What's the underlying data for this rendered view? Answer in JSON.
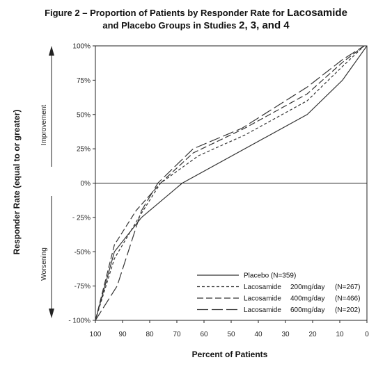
{
  "title": {
    "line1_a": "Figure 2 – Proportion of Patients by Responder Rate for ",
    "line1_b": "Lacosamide",
    "line2_a": "and Placebo Groups in Studies ",
    "line2_b": "2, 3, and 4"
  },
  "chart_data": {
    "type": "line",
    "xlabel": "Percent of Patients",
    "ylabel": "Responder Rate (equal to or greater)",
    "xlim": [
      100,
      0
    ],
    "ylim": [
      -100,
      100
    ],
    "x_reversed": true,
    "x_ticks": [
      100,
      90,
      80,
      70,
      60,
      50,
      40,
      30,
      20,
      10,
      0
    ],
    "x_tick_labels": [
      "100",
      "90",
      "80",
      "70",
      "60",
      "50",
      "40",
      "30",
      "20",
      "10",
      "0"
    ],
    "y_ticks": [
      100,
      75,
      50,
      25,
      0,
      -25,
      -50,
      -75,
      -100
    ],
    "y_tick_labels": [
      "100%",
      "75%",
      "50%",
      "25%",
      "0%",
      "- 25%",
      "-50%",
      "-75%",
      "- 100%"
    ],
    "zero_line": true,
    "side_labels": {
      "upper": "Improvement",
      "lower": "Worsening"
    },
    "legend_position": "bottom-right",
    "series": [
      {
        "name": "Placebo (N=359)",
        "label_main": "Placebo (N=359)",
        "label_dose": "",
        "label_n": "",
        "dash": "solid",
        "x": [
          100,
          93,
          83,
          68,
          22,
          9,
          0
        ],
        "y": [
          -100,
          -50,
          -25,
          0,
          50,
          75,
          100
        ]
      },
      {
        "name": "Lacosamide 200mg/day (N=267)",
        "label_main": "Lacosamide",
        "label_dose": "200mg/day",
        "label_n": "(N=267)",
        "dash": "short",
        "x": [
          100,
          93,
          84,
          76,
          62,
          45,
          22,
          9,
          1
        ],
        "y": [
          -100,
          -55,
          -25,
          0,
          20,
          35,
          60,
          85,
          100
        ]
      },
      {
        "name": "Lacosamide 400mg/day (N=466)",
        "label_main": "Lacosamide",
        "label_dose": "400mg/day",
        "label_n": "(N=466)",
        "dash": "medium",
        "x": [
          100,
          93,
          85,
          76,
          64,
          45,
          22,
          9,
          1
        ],
        "y": [
          -100,
          -45,
          -20,
          0,
          22,
          40,
          65,
          88,
          100
        ]
      },
      {
        "name": "Lacosamide 600mg/day (N=202)",
        "label_main": "Lacosamide",
        "label_dose": "600mg/day",
        "label_n": "(N=202)",
        "dash": "long",
        "x": [
          100,
          92,
          83,
          77,
          64,
          46,
          22,
          9,
          1
        ],
        "y": [
          -100,
          -75,
          -20,
          0,
          25,
          40,
          70,
          90,
          100
        ]
      }
    ]
  }
}
